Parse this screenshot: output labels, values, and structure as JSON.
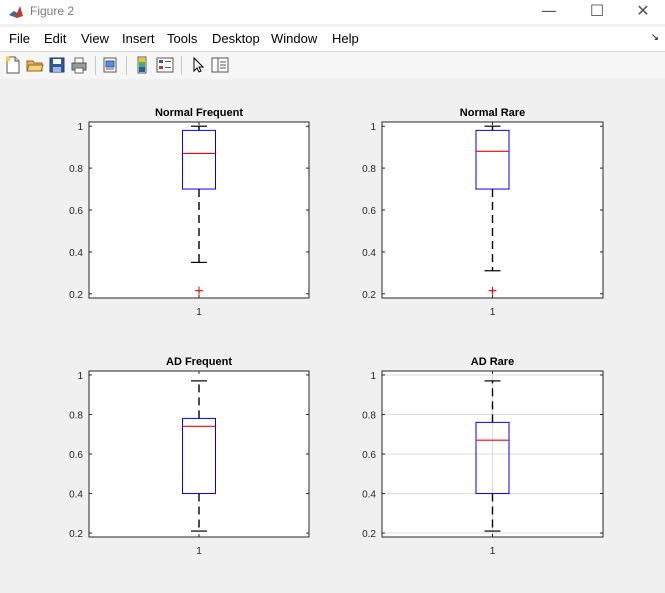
{
  "window": {
    "title": "Figure 2",
    "minimize": "—",
    "maximize": "☐",
    "close": "✕"
  },
  "menu": [
    "File",
    "Edit",
    "View",
    "Insert",
    "Tools",
    "Desktop",
    "Window",
    "Help"
  ],
  "dock_arrow": "↘",
  "toolbar": {
    "buttons": [
      "new-figure-icon",
      "open-file-icon",
      "save-icon",
      "print-icon",
      "print-preview-icon",
      "colorbar-icon",
      "legend-icon",
      "pointer-icon",
      "property-editor-icon"
    ]
  },
  "chart_data": [
    {
      "type": "box",
      "title": "Normal Frequent",
      "categories": [
        "1"
      ],
      "ylim": [
        0.18,
        1.02
      ],
      "yticks": [
        "0.2",
        "0.4",
        "0.6",
        "0.8",
        "1"
      ],
      "grid": false,
      "box": {
        "whisker_low": 0.35,
        "q1": 0.7,
        "median": 0.87,
        "q3": 0.98,
        "whisker_high": 1.0,
        "outliers": [
          0.215
        ]
      }
    },
    {
      "type": "box",
      "title": "Normal Rare",
      "categories": [
        "1"
      ],
      "ylim": [
        0.18,
        1.02
      ],
      "yticks": [
        "0.2",
        "0.4",
        "0.6",
        "0.8",
        "1"
      ],
      "grid": false,
      "box": {
        "whisker_low": 0.31,
        "q1": 0.7,
        "median": 0.88,
        "q3": 0.98,
        "whisker_high": 1.0,
        "outliers": [
          0.215
        ]
      }
    },
    {
      "type": "box",
      "title": "AD Frequent",
      "categories": [
        "1"
      ],
      "ylim": [
        0.18,
        1.02
      ],
      "yticks": [
        "0.2",
        "0.4",
        "0.6",
        "0.8",
        "1"
      ],
      "grid": false,
      "box": {
        "whisker_low": 0.21,
        "q1": 0.4,
        "median": 0.74,
        "q3": 0.78,
        "whisker_high": 0.97,
        "outliers": []
      }
    },
    {
      "type": "box",
      "title": "AD Rare",
      "categories": [
        "1"
      ],
      "ylim": [
        0.18,
        1.02
      ],
      "yticks": [
        "0.2",
        "0.4",
        "0.6",
        "0.8",
        "1"
      ],
      "grid": true,
      "box": {
        "whisker_low": 0.21,
        "q1": 0.4,
        "median": 0.67,
        "q3": 0.76,
        "whisker_high": 0.97,
        "outliers": []
      }
    }
  ]
}
